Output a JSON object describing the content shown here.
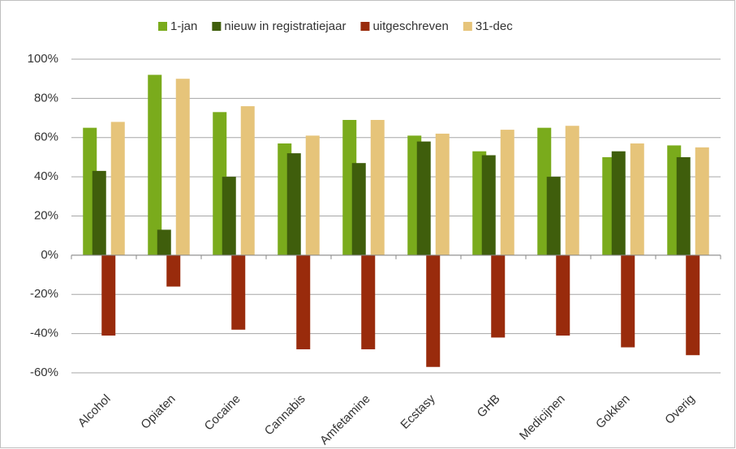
{
  "chart_data": {
    "type": "bar",
    "categories": [
      "Alcohol",
      "Opiaten",
      "Cocaine",
      "Cannabis",
      "Amfetamine",
      "Ecstasy",
      "GHB",
      "Medicijnen",
      "Gokken",
      "Overig"
    ],
    "series": [
      {
        "name": "1-jan",
        "color": "#7aab1c",
        "values": [
          65,
          92,
          73,
          57,
          69,
          61,
          53,
          65,
          50,
          56
        ]
      },
      {
        "name": "nieuw in registratiejaar",
        "color": "#3f5e0c",
        "values": [
          43,
          13,
          40,
          52,
          47,
          58,
          51,
          40,
          53,
          50
        ]
      },
      {
        "name": "uitgeschreven",
        "color": "#992b0c",
        "values": [
          -41,
          -16,
          -38,
          -48,
          -48,
          -57,
          -42,
          -41,
          -47,
          -51
        ]
      },
      {
        "name": "31-dec",
        "color": "#e6c47a",
        "values": [
          68,
          90,
          76,
          61,
          69,
          62,
          64,
          66,
          57,
          55
        ]
      }
    ],
    "ylim": [
      -60,
      100
    ],
    "yticks": [
      {
        "value": -60,
        "label": "-60%"
      },
      {
        "value": -40,
        "label": "-40%"
      },
      {
        "value": -20,
        "label": "-20%"
      },
      {
        "value": 0,
        "label": "0%"
      },
      {
        "value": 20,
        "label": "20%"
      },
      {
        "value": 40,
        "label": "40%"
      },
      {
        "value": 60,
        "label": "60%"
      },
      {
        "value": 80,
        "label": "80%"
      },
      {
        "value": 100,
        "label": "100%"
      }
    ],
    "grid": true,
    "legend": "top"
  }
}
